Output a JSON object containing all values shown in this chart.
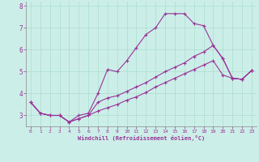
{
  "xlabel": "Windchill (Refroidissement éolien,°C)",
  "bg_color": "#cceee8",
  "grid_color": "#aaddcc",
  "line_color": "#993399",
  "xlim": [
    -0.5,
    23.5
  ],
  "ylim": [
    2.5,
    8.2
  ],
  "xticks": [
    0,
    1,
    2,
    3,
    4,
    5,
    6,
    7,
    8,
    9,
    10,
    11,
    12,
    13,
    14,
    15,
    16,
    17,
    18,
    19,
    20,
    21,
    22,
    23
  ],
  "yticks": [
    3,
    4,
    5,
    6,
    7,
    8
  ],
  "line1_x": [
    0,
    1,
    2,
    3,
    4,
    5,
    6,
    7,
    8,
    9,
    10,
    11,
    12,
    13,
    14,
    15,
    16,
    17,
    18,
    19,
    20,
    21,
    22,
    23
  ],
  "line1_y": [
    3.6,
    3.1,
    3.0,
    3.0,
    2.7,
    3.0,
    3.1,
    4.0,
    5.1,
    5.0,
    5.5,
    6.1,
    6.7,
    7.0,
    7.65,
    7.65,
    7.65,
    7.2,
    7.1,
    6.2,
    5.6,
    4.7,
    4.65,
    5.05
  ],
  "line2_x": [
    0,
    1,
    2,
    3,
    4,
    5,
    6,
    7,
    8,
    9,
    10,
    11,
    12,
    13,
    14,
    15,
    16,
    17,
    18,
    19,
    20,
    21,
    22,
    23
  ],
  "line2_y": [
    3.6,
    3.1,
    3.0,
    3.0,
    2.7,
    2.85,
    3.0,
    3.6,
    3.8,
    3.9,
    4.1,
    4.3,
    4.5,
    4.75,
    5.0,
    5.2,
    5.4,
    5.7,
    5.9,
    6.2,
    5.6,
    4.7,
    4.65,
    5.05
  ],
  "line3_x": [
    0,
    1,
    2,
    3,
    4,
    5,
    6,
    7,
    8,
    9,
    10,
    11,
    12,
    13,
    14,
    15,
    16,
    17,
    18,
    19,
    20,
    21,
    22,
    23
  ],
  "line3_y": [
    3.6,
    3.1,
    3.0,
    3.0,
    2.7,
    2.85,
    3.0,
    3.2,
    3.35,
    3.5,
    3.7,
    3.85,
    4.05,
    4.3,
    4.5,
    4.7,
    4.9,
    5.1,
    5.3,
    5.5,
    4.85,
    4.7,
    4.65,
    5.05
  ]
}
